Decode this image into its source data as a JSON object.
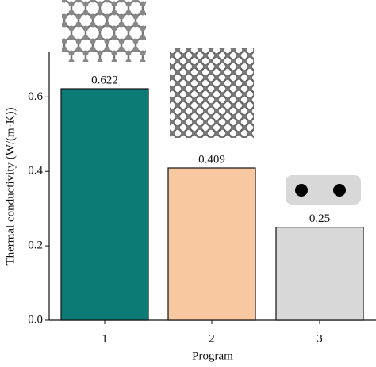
{
  "chart_data": {
    "type": "bar",
    "categories": [
      "1",
      "2",
      "3"
    ],
    "values": [
      0.622,
      0.409,
      0.25
    ],
    "colors": [
      "#0d7b75",
      "#f8c9a0",
      "#d8d8d8"
    ],
    "x_label": "Program",
    "y_label": "Thermal conductivity (W/(m·K))",
    "ylim": [
      0,
      0.72
    ],
    "yticks": [
      {
        "value": 0,
        "label": "0.0"
      },
      0.2,
      0.4,
      0.6
    ]
  }
}
